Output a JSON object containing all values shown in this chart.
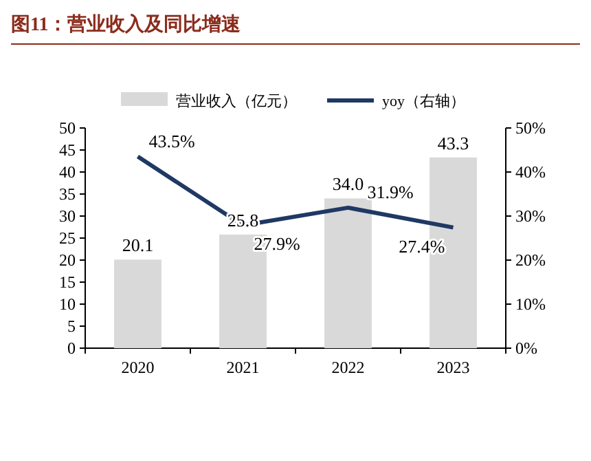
{
  "chart_data": {
    "type": "bar",
    "title": "图11：营业收入及同比增速",
    "categories": [
      "2020",
      "2021",
      "2022",
      "2023"
    ],
    "series": [
      {
        "name": "营业收入（亿元）",
        "color": "#d9d9d9",
        "values": [
          20.1,
          25.8,
          34.0,
          43.3
        ],
        "value_labels": [
          "20.1",
          "25.8",
          "34.0",
          "43.3"
        ]
      },
      {
        "name": "yoy（右轴）",
        "type": "line",
        "axis": "y2",
        "color": "#1f3864",
        "values": [
          43.5,
          27.9,
          31.9,
          27.4
        ],
        "value_labels": [
          "43.5%",
          "27.9%",
          "31.9%",
          "27.4%"
        ]
      }
    ],
    "ylim": [
      0,
      50
    ],
    "yticks": [
      0,
      5,
      10,
      15,
      20,
      25,
      30,
      35,
      40,
      45,
      50
    ],
    "y2lim": [
      0,
      50
    ],
    "y2ticks": [
      {
        "value": 0,
        "label": "0%"
      },
      {
        "value": 10,
        "label": "10%"
      },
      {
        "value": 20,
        "label": "20%"
      },
      {
        "value": 30,
        "label": "30%"
      },
      {
        "value": 40,
        "label": "40%"
      },
      {
        "value": 50,
        "label": "50%"
      }
    ],
    "legend": "top",
    "grid": false,
    "marker": "none",
    "line_style": "solid"
  }
}
